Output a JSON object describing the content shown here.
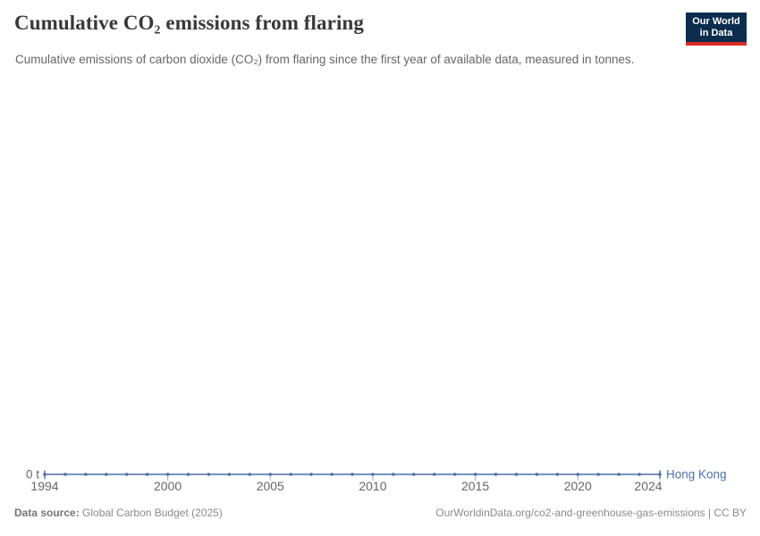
{
  "header": {
    "title": "Cumulative CO₂ emissions from flaring",
    "subtitle": "Cumulative emissions of carbon dioxide (CO₂) from flaring since the first year of available data, measured in tonnes.",
    "logo": {
      "line1": "Our World",
      "line2": "in Data",
      "bg_color": "#0c2d4e",
      "accent_color": "#dc2a23"
    }
  },
  "chart_data": {
    "type": "line",
    "title": "Cumulative CO₂ emissions from flaring",
    "xlabel": "",
    "ylabel": "tonnes",
    "x": [
      1994,
      1995,
      1996,
      1997,
      1998,
      1999,
      2000,
      2001,
      2002,
      2003,
      2004,
      2005,
      2006,
      2007,
      2008,
      2009,
      2010,
      2011,
      2012,
      2013,
      2014,
      2015,
      2016,
      2017,
      2018,
      2019,
      2020,
      2021,
      2022,
      2023,
      2024
    ],
    "series": [
      {
        "name": "Hong Kong",
        "color": "#4c6fa8",
        "values": [
          0,
          0,
          0,
          0,
          0,
          0,
          0,
          0,
          0,
          0,
          0,
          0,
          0,
          0,
          0,
          0,
          0,
          0,
          0,
          0,
          0,
          0,
          0,
          0,
          0,
          0,
          0,
          0,
          0,
          0,
          0
        ]
      }
    ],
    "xticks": [
      1994,
      2000,
      2005,
      2010,
      2015,
      2020,
      2024
    ],
    "x_range": [
      1994,
      2024
    ],
    "ylim": [
      0,
      0
    ],
    "y_axis_zero_label": "0 t",
    "grid": false,
    "legend_position": "end-of-line entity label",
    "axis_label_color": "#666666",
    "tick_color": "#a6aeb8"
  },
  "footer": {
    "source_label": "Data source:",
    "source_value": " Global Carbon Budget (2025)",
    "link": "OurWorldinData.org/co2-and-greenhouse-gas-emissions | CC BY"
  }
}
